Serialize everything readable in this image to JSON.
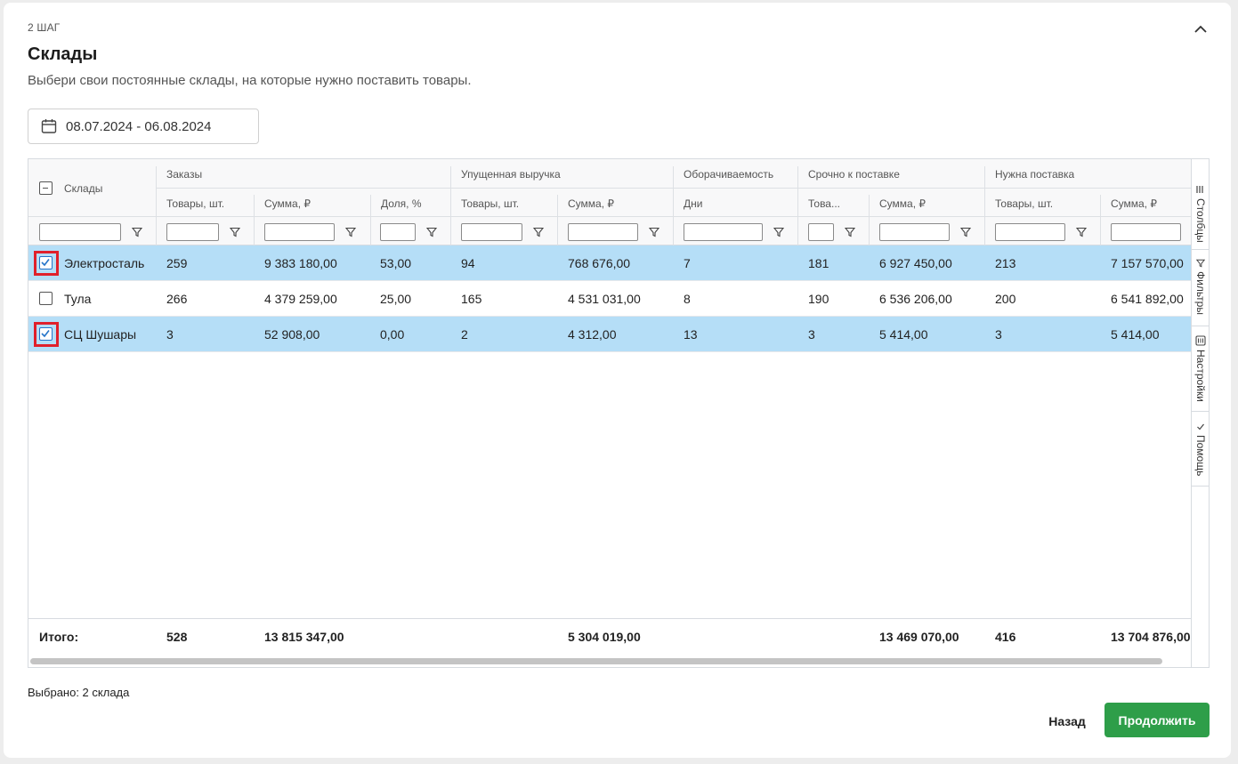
{
  "step_label": "2 ШАГ",
  "title": "Склады",
  "subtitle": "Выбери свои постоянные склады, на которые нужно поставить товары.",
  "date_range": "08.07.2024 - 06.08.2024",
  "table": {
    "name_header": "Склады",
    "groups": [
      {
        "label": "Заказы"
      },
      {
        "label": "Упущенная выручка"
      },
      {
        "label": "Оборачиваемость"
      },
      {
        "label": "Срочно к поставке"
      },
      {
        "label": "Нужна поставка"
      }
    ],
    "columns": [
      {
        "label": "Товары, шт."
      },
      {
        "label": "Сумма, ₽"
      },
      {
        "label": "Доля, %"
      },
      {
        "label": "Товары, шт."
      },
      {
        "label": "Сумма, ₽"
      },
      {
        "label": "Дни"
      },
      {
        "label": "Това..."
      },
      {
        "label": "Сумма, ₽"
      },
      {
        "label": "Товары, шт."
      },
      {
        "label": "Сумма, ₽"
      }
    ],
    "rows": [
      {
        "name": "Электросталь",
        "selected": true,
        "cells": [
          "259",
          "9 383 180,00",
          "53,00",
          "94",
          "768 676,00",
          "7",
          "181",
          "6 927 450,00",
          "213",
          "7 157 570,00"
        ]
      },
      {
        "name": "Тула",
        "selected": false,
        "cells": [
          "266",
          "4 379 259,00",
          "25,00",
          "165",
          "4 531 031,00",
          "8",
          "190",
          "6 536 206,00",
          "200",
          "6 541 892,00"
        ]
      },
      {
        "name": "СЦ Шушары",
        "selected": true,
        "cells": [
          "3",
          "52 908,00",
          "0,00",
          "2",
          "4 312,00",
          "13",
          "3",
          "5 414,00",
          "3",
          "5 414,00"
        ]
      }
    ],
    "totals": {
      "label": "Итого:",
      "cells": [
        "528",
        "13 815 347,00",
        "",
        "",
        "5 304 019,00",
        "",
        "",
        "13 469 070,00",
        "416",
        "13 704 876,00"
      ]
    }
  },
  "side_panel": {
    "columns": "Столбцы",
    "filters": "Фильтры",
    "settings": "Настройки",
    "help": "Помощь"
  },
  "selected_text": "Выбрано: 2 склада",
  "buttons": {
    "back": "Назад",
    "continue": "Продолжить"
  },
  "colors": {
    "selected_row": "#b5def7",
    "primary_button": "#2e9e49",
    "highlight": "#e0202b"
  }
}
